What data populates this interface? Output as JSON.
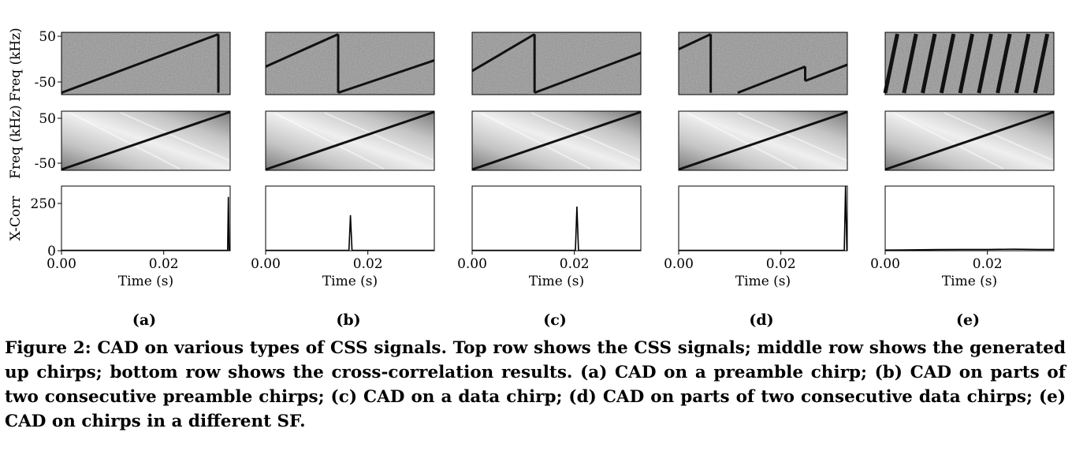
{
  "figure": {
    "subfigures": [
      "(a)",
      "(b)",
      "(c)",
      "(d)",
      "(e)"
    ],
    "row_labels": {
      "spectrogram": "Freq (kHz)",
      "upchirp": "Freq (kHz)",
      "xcorr": "X-Corr"
    },
    "xlabel": "Time (s)",
    "freq_ticks": [
      "50",
      "-50"
    ],
    "xcorr_ticks": [
      "250",
      "0"
    ],
    "time_ticks": [
      "0.00",
      "0.02"
    ]
  },
  "caption": {
    "label": "Figure 2:",
    "text": "CAD on various types of CSS signals. Top row shows the CSS signals; middle row shows the generated up chirps; bottom row shows the cross-correlation results. (a) CAD on a preamble chirp; (b) CAD on parts of two consecutive preamble chirps; (c) CAD on a data chirp; (d) CAD on parts of two consecutive data chirps; (e) CAD on chirps in a different SF."
  },
  "chart_data": [
    {
      "type": "line",
      "title": "(a)",
      "xlabel": "Time (s)",
      "ylabel": "X-Corr",
      "xlim": [
        0,
        0.033
      ],
      "ylim": [
        0,
        300
      ],
      "x": [
        0,
        0.0325,
        0.03265,
        0.0328,
        0.033
      ],
      "values": [
        2,
        2,
        250,
        2,
        2
      ]
    },
    {
      "type": "line",
      "title": "(b)",
      "xlabel": "Time (s)",
      "ylabel": "",
      "xlim": [
        0,
        0.033
      ],
      "ylim": [
        0,
        300
      ],
      "x": [
        0,
        0.0163,
        0.0166,
        0.0169,
        0.033
      ],
      "values": [
        2,
        2,
        165,
        2,
        2
      ]
    },
    {
      "type": "line",
      "title": "(c)",
      "xlabel": "Time (s)",
      "ylabel": "",
      "xlim": [
        0,
        0.033
      ],
      "ylim": [
        0,
        300
      ],
      "x": [
        0,
        0.0202,
        0.0205,
        0.0208,
        0.033
      ],
      "values": [
        2,
        2,
        205,
        2,
        2
      ]
    },
    {
      "type": "line",
      "title": "(d)",
      "xlabel": "Time (s)",
      "ylabel": "",
      "xlim": [
        0,
        0.033
      ],
      "ylim": [
        0,
        300
      ],
      "x": [
        0,
        0.0324,
        0.03265,
        0.0329,
        0.033
      ],
      "values": [
        2,
        2,
        298,
        2,
        2
      ]
    },
    {
      "type": "line",
      "title": "(e)",
      "xlabel": "Time (s)",
      "ylabel": "",
      "xlim": [
        0,
        0.033
      ],
      "ylim": [
        0,
        300
      ],
      "x": [
        0,
        0.005,
        0.01,
        0.015,
        0.02,
        0.025,
        0.03,
        0.033
      ],
      "values": [
        3,
        4,
        5,
        6,
        6,
        7,
        6,
        6
      ]
    }
  ]
}
